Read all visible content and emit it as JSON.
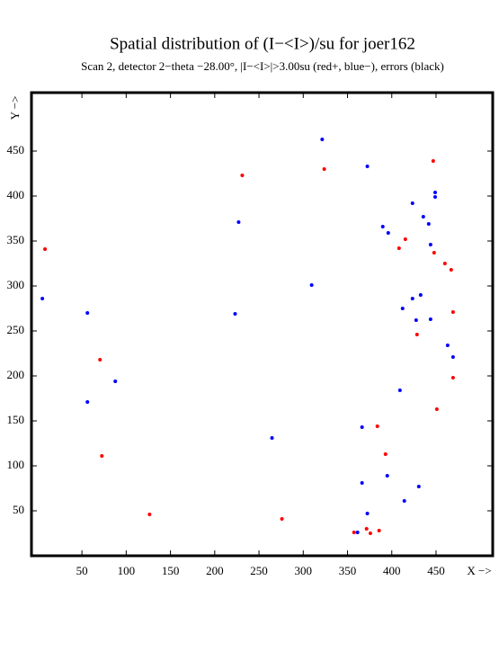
{
  "chart_data": {
    "type": "scatter",
    "title": "Spatial distribution of (I−<I>)/su for joer162",
    "subtitle": "Scan  2, detector 2−theta −28.00°, |I−<I>|>3.00su (red+, blue−), errors (black)",
    "x_label": "X −>",
    "y_label": "Y −>",
    "xlim": [
      -7,
      514
    ],
    "ylim": [
      0,
      515
    ],
    "xticks": [
      50,
      100,
      150,
      200,
      250,
      300,
      350,
      400,
      450
    ],
    "yticks": [
      50,
      100,
      150,
      200,
      250,
      300,
      350,
      400,
      450
    ],
    "series": [
      {
        "color": "#0000ff",
        "x": [
          321.4,
          372.4,
          227,
          449,
          449,
          423.4,
          435.6,
          441.7,
          389.8,
          396,
          443.8,
          5.3,
          309.5,
          432.6,
          423.4,
          412.2,
          56.2,
          223,
          427.5,
          443.8,
          463.1,
          469.2,
          87.7,
          409.2,
          56.2,
          264.7,
          366.4,
          366.4,
          394.9,
          430.5,
          372.4,
          414.2,
          361.3
        ],
        "y": [
          463,
          433,
          371,
          404,
          399,
          392,
          377,
          369,
          366,
          359,
          346,
          286,
          301,
          290,
          286,
          275,
          270,
          269,
          262,
          263,
          234,
          221,
          194,
          184,
          171,
          131,
          143,
          81,
          89,
          77,
          47,
          61,
          26
        ]
      },
      {
        "color": "#ff0000",
        "x": [
          446.8,
          231.1,
          323.7,
          8.3,
          415.3,
          408.2,
          447.8,
          460,
          467.1,
          469.2,
          428.5,
          70.4,
          469.2,
          450.9,
          383.7,
          392.9,
          72.5,
          126.4,
          275.9,
          371.5,
          357.3,
          375.8,
          385.7
        ],
        "y": [
          439,
          423,
          430,
          341,
          352,
          342,
          337,
          325,
          318,
          271,
          246,
          218,
          198,
          163,
          144,
          113,
          111,
          46,
          41,
          30,
          26,
          25,
          28
        ]
      }
    ]
  }
}
